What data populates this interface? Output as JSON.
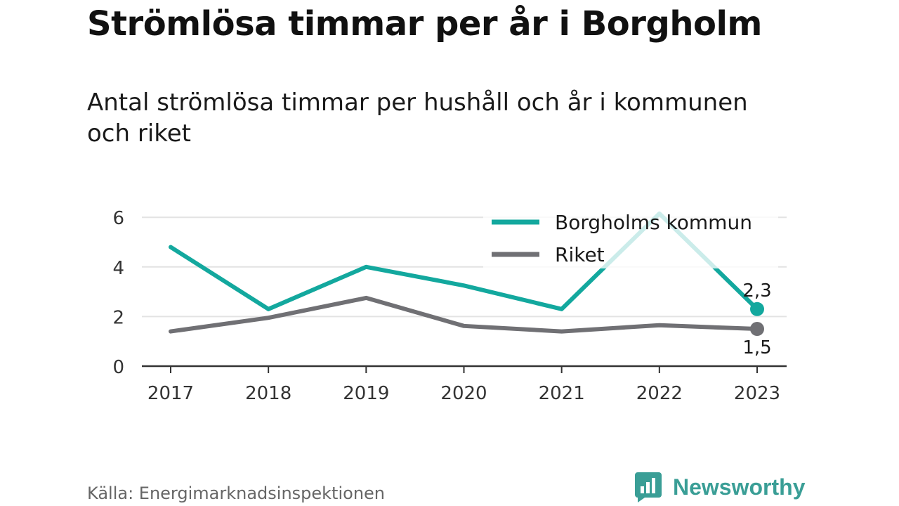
{
  "title": "Strömlösa timmar per år i Borgholm",
  "subtitle": "Antal strömlösa timmar per hushåll och år i kommunen och riket",
  "source": "Källa: Energimarknadsinspektionen",
  "brand": {
    "name": "Newsworthy",
    "logo_icon": "bar-chart-speech-bubble-icon",
    "color": "#3a9e96"
  },
  "chart_data": {
    "type": "line",
    "x": [
      "2017",
      "2018",
      "2019",
      "2020",
      "2021",
      "2022",
      "2023"
    ],
    "ylim": [
      0,
      6.2
    ],
    "yticks": [
      0,
      2,
      4,
      6
    ],
    "grid": true,
    "legend_position": "top-right",
    "series": [
      {
        "name": "Borgholms kommun",
        "color": "#13a89e",
        "values": [
          4.8,
          2.3,
          4.0,
          3.25,
          2.3,
          6.15,
          2.3
        ],
        "end_label": "2,3"
      },
      {
        "name": "Riket",
        "color": "#707074",
        "values": [
          1.4,
          1.95,
          2.75,
          1.62,
          1.4,
          1.65,
          1.5
        ],
        "end_label": "1,5"
      }
    ]
  }
}
